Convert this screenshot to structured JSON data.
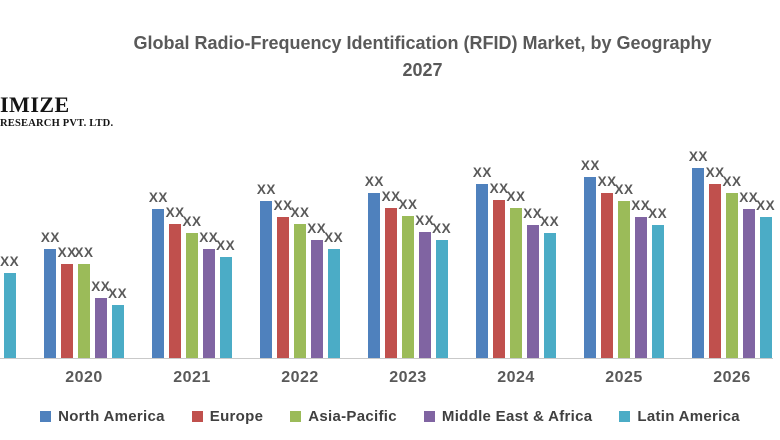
{
  "title": {
    "line1": "Global Radio-Frequency Identification (RFID) Market, by Geography",
    "line2": "2027"
  },
  "logo": {
    "line1": "IMIZE",
    "line2": "RESEARCH PVT. LTD."
  },
  "colors": {
    "title_text": "#595959",
    "axis_label_text": "#595959",
    "legend_text": "#404040",
    "axis_line": "#c9c9c9",
    "background": "#ffffff"
  },
  "chart_data": {
    "type": "bar",
    "title": "Global Radio-Frequency Identification (RFID) Market, by Geography 2027",
    "categories": [
      "",
      "2020",
      "2021",
      "2022",
      "2023",
      "2024",
      "2025",
      "2026"
    ],
    "value_label_text": "XX",
    "note": "Numeric values are redacted as 'XX' in the chart; series values below are relative bar heights in pixels. First category is a partially cropped group showing only its Latin America bar.",
    "grid": false,
    "legend_position": "bottom",
    "series": [
      {
        "name": "North America",
        "color": "#4F81BD",
        "values": [
          null,
          109,
          149,
          157,
          165,
          174,
          181,
          190
        ]
      },
      {
        "name": "Europe",
        "color": "#C0504D",
        "values": [
          null,
          94,
          134,
          141,
          150,
          158,
          165,
          174
        ]
      },
      {
        "name": "Asia-Pacific",
        "color": "#9BBB59",
        "values": [
          null,
          94,
          125,
          134,
          142,
          150,
          157,
          165
        ]
      },
      {
        "name": "Middle East & Africa",
        "color": "#8064A2",
        "values": [
          null,
          60,
          109,
          118,
          126,
          133,
          141,
          149
        ]
      },
      {
        "name": "Latin America",
        "color": "#4BACC6",
        "values": [
          85,
          53,
          101,
          109,
          118,
          125,
          133,
          141
        ]
      }
    ]
  }
}
